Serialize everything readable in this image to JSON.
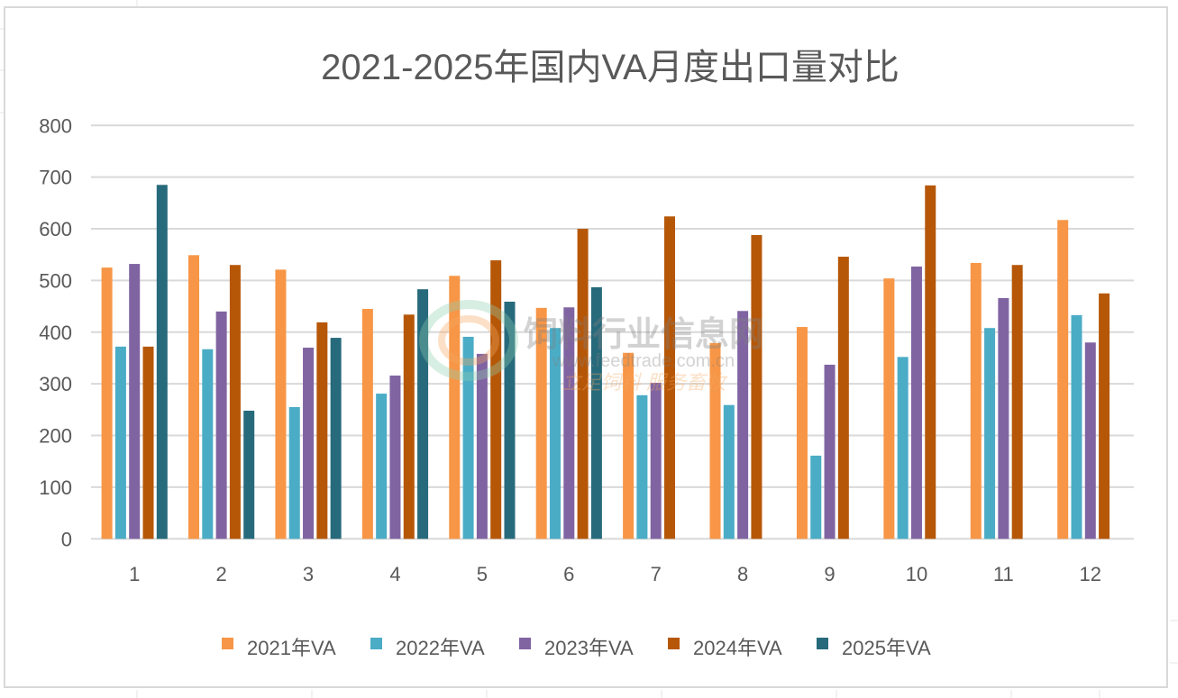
{
  "chart_data": {
    "type": "bar",
    "title": "2021-2025年国内VA月度出口量对比",
    "xlabel": "",
    "ylabel": "",
    "ylim": [
      0,
      800
    ],
    "yticks": [
      0,
      100,
      200,
      300,
      400,
      500,
      600,
      700,
      800
    ],
    "grid": true,
    "legend_position": "bottom",
    "categories": [
      "1",
      "2",
      "3",
      "4",
      "5",
      "6",
      "7",
      "8",
      "9",
      "10",
      "11",
      "12"
    ],
    "series": [
      {
        "name": "2021年VA",
        "color": "#F79646",
        "values": [
          525,
          549,
          521,
          445,
          509,
          447,
          360,
          379,
          410,
          504,
          534,
          617
        ]
      },
      {
        "name": "2022年VA",
        "color": "#4BACC6",
        "values": [
          372,
          367,
          255,
          281,
          391,
          408,
          278,
          259,
          161,
          352,
          408,
          433
        ]
      },
      {
        "name": "2023年VA",
        "color": "#8064A2",
        "values": [
          532,
          440,
          370,
          316,
          358,
          448,
          302,
          441,
          337,
          527,
          466,
          380
        ]
      },
      {
        "name": "2024年VA",
        "color": "#B65708",
        "values": [
          372,
          530,
          419,
          434,
          539,
          600,
          624,
          588,
          546,
          684,
          530,
          475
        ]
      },
      {
        "name": "2025年VA",
        "color": "#276A7C",
        "values": [
          685,
          248,
          389,
          483,
          459,
          487,
          null,
          null,
          null,
          null,
          null,
          null
        ]
      }
    ]
  },
  "watermark": {
    "name": "饲料行业信息网",
    "url": "www.feedtrade.com.cn",
    "slogan": "立足饲料  服务畜牧"
  },
  "colors": {
    "grid": "#D9D9D9",
    "text": "#595959",
    "frame": "#D9D9D9"
  }
}
